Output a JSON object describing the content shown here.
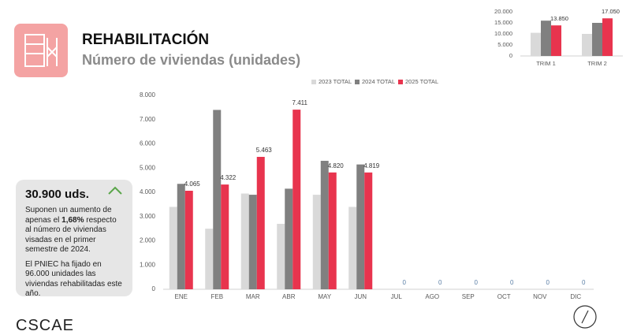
{
  "header": {
    "title": "REHABILITACIÓN",
    "subtitle": "Número de viviendas (unidades)"
  },
  "summary": {
    "headline": "30.900 uds.",
    "paragraph1": [
      "Suponen un aumento de apenas el ",
      "1,68%",
      " respecto al número de viviendas visadas en el primer semestre de 2024."
    ],
    "paragraph2": "El PNIEC ha fijado en 96.000 unidades las viviendas rehabilitadas este año."
  },
  "logo": "CSCAE",
  "chart_data": [
    {
      "type": "bar",
      "categories": [
        "ENE",
        "FEB",
        "MAR",
        "ABR",
        "MAY",
        "JUN",
        "JUL",
        "AGO",
        "SEP",
        "OCT",
        "NOV",
        "DIC"
      ],
      "series": [
        {
          "name": "2023 TOTAL",
          "color": "#d9d9d9",
          "values": [
            3400,
            2500,
            3950,
            2700,
            3900,
            3400,
            null,
            null,
            null,
            null,
            null,
            null
          ]
        },
        {
          "name": "2024 TOTAL",
          "color": "#808080",
          "values": [
            4350,
            7400,
            3900,
            4150,
            5300,
            5150,
            null,
            null,
            null,
            null,
            null,
            null
          ]
        },
        {
          "name": "2025 TOTAL",
          "color": "#e8344e",
          "values": [
            4065,
            4322,
            5463,
            7411,
            4820,
            4819,
            0,
            0,
            0,
            0,
            0,
            0
          ],
          "value_labels": [
            "4.065",
            "4.322",
            "5.463",
            "7.411",
            "4.820",
            "4.819",
            "0",
            "0",
            "0",
            "0",
            "0",
            "0"
          ]
        }
      ],
      "ylim": [
        0,
        8000
      ],
      "yticks": [
        0,
        {
          "value": 1000,
          "label": "1.000"
        },
        {
          "value": 2000,
          "label": "2.000"
        },
        {
          "value": 3000,
          "label": "3.000"
        },
        {
          "value": 4000,
          "label": "4.000"
        },
        {
          "value": 5000,
          "label": "5.000"
        },
        {
          "value": 6000,
          "label": "6.000"
        },
        {
          "value": 7000,
          "label": "7.000"
        },
        {
          "value": 8000,
          "label": "8.000"
        }
      ],
      "grid": false,
      "legend": "top"
    },
    {
      "type": "bar",
      "categories": [
        "TRIM 1",
        "TRIM 2"
      ],
      "series": [
        {
          "color": "#d9d9d9",
          "values": [
            10500,
            10000
          ]
        },
        {
          "color": "#808080",
          "values": [
            16000,
            15000
          ]
        },
        {
          "color": "#e8344e",
          "values": [
            13850,
            17050
          ],
          "value_labels": [
            "13.850",
            "17.050"
          ]
        }
      ],
      "ylim": [
        0,
        20000
      ],
      "yticks": [
        0,
        {
          "value": 5000,
          "label": "5.000"
        },
        {
          "value": 10000,
          "label": "10.000"
        },
        {
          "value": 15000,
          "label": "15.000"
        },
        {
          "value": 20000,
          "label": "20.000"
        }
      ],
      "grid": false
    }
  ]
}
